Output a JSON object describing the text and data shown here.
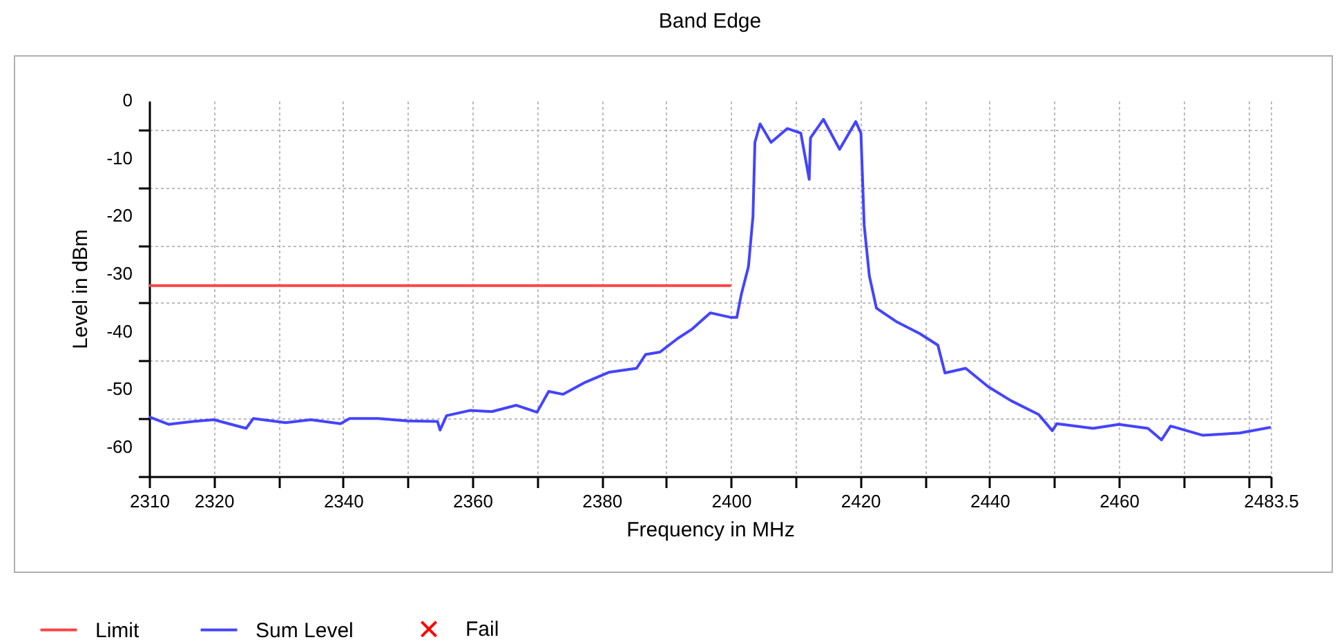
{
  "chart_data": {
    "type": "line",
    "title": "Band Edge",
    "xlabel": "Frequency in MHz",
    "ylabel": "Level in dBm",
    "xlim": [
      2310,
      2483.5
    ],
    "xticks": [
      2310,
      2320,
      {
        "value": 2330,
        "label": null
      },
      2340,
      {
        "value": 2350,
        "label": null
      },
      2360,
      {
        "value": 2370,
        "label": null
      },
      2380,
      {
        "value": 2390,
        "label": null
      },
      2400,
      {
        "value": 2410,
        "label": null
      },
      2420,
      {
        "value": 2430,
        "label": null
      },
      2440,
      {
        "value": 2450,
        "label": null
      },
      2460,
      {
        "value": 2470,
        "label": null
      },
      {
        "value": 2480,
        "label": null
      },
      2483.5
    ],
    "ylim": [
      -65,
      0
    ],
    "yticks": [
      0,
      {
        "value": -5,
        "label": null
      },
      -10,
      {
        "value": -15,
        "label": null
      },
      -20,
      {
        "value": -25,
        "label": null
      },
      -30,
      {
        "value": -35,
        "label": null
      },
      -40,
      {
        "value": -45,
        "label": null
      },
      -50,
      {
        "value": -55,
        "label": null
      },
      -60,
      {
        "value": -65,
        "label": null
      }
    ],
    "grid": true,
    "legend": "bottom left",
    "line_style": "solid",
    "series": [
      {
        "name": "Limit",
        "color": "#ff4444",
        "x": [
          2310,
          2400
        ],
        "values": [
          -32,
          -32
        ]
      },
      {
        "name": "Sum Level",
        "color": "#4444ff",
        "x": [
          2310,
          2313,
          2316.8,
          2320,
          2325,
          2326.1,
          2331.1,
          2335,
          2339.6,
          2341,
          2345.4,
          2350,
          2354.6,
          2355,
          2356,
          2359.6,
          2363,
          2366.8,
          2370,
          2371.8,
          2374,
          2377.5,
          2381.1,
          2385.4,
          2386.8,
          2389,
          2391.8,
          2394,
          2396.8,
          2400,
          2400.9,
          2401.6,
          2402.7,
          2403.4,
          2403.7,
          2404.5,
          2406.2,
          2408.7,
          2410.8,
          2412.1,
          2412.3,
          2414.3,
          2416.8,
          2419.3,
          2420.1,
          2420.6,
          2421.4,
          2422.5,
          2425.7,
          2429.2,
          2432,
          2433.1,
          2436.3,
          2439.8,
          2443.3,
          2447.6,
          2449.7,
          2450.4,
          2456,
          2460,
          2464.5,
          2466.6,
          2468,
          2473,
          2478.7,
          2483.5
        ],
        "values": [
          -54.7,
          -56,
          -55.5,
          -55.2,
          -56.7,
          -55,
          -55.7,
          -55.2,
          -55.9,
          -55,
          -55,
          -55.4,
          -55.5,
          -57,
          -54.5,
          -53.6,
          -53.8,
          -52.7,
          -53.9,
          -50.3,
          -50.8,
          -48.7,
          -47,
          -46.3,
          -43.9,
          -43.5,
          -41.1,
          -39.5,
          -36.7,
          -37.5,
          -37.5,
          -33.5,
          -28.7,
          -20,
          -7.2,
          -4,
          -7.2,
          -4.8,
          -5.6,
          -13.6,
          -6.4,
          -3.2,
          -8.4,
          -3.6,
          -5.6,
          -21.5,
          -30.3,
          -35.9,
          -38.3,
          -40.3,
          -42.3,
          -47.1,
          -46.3,
          -49.5,
          -51.9,
          -54.3,
          -57.1,
          -55.9,
          -56.7,
          -56,
          -56.7,
          -58.7,
          -56.3,
          -57.9,
          -57.5,
          -56.5
        ]
      },
      {
        "name": "Fail",
        "type": "scatter",
        "marker": "cross",
        "color": "#ff0000"
      }
    ]
  }
}
